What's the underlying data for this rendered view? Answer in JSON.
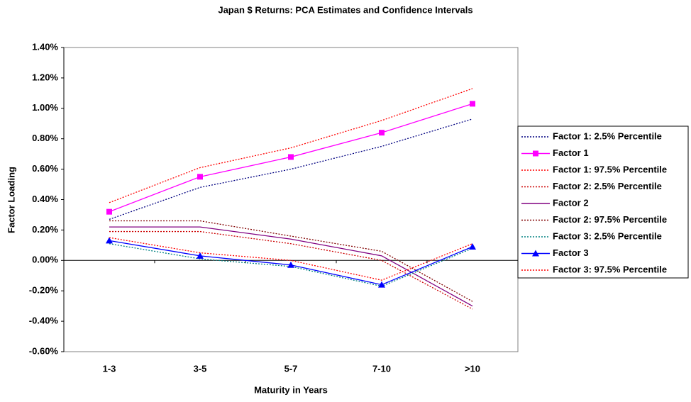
{
  "chart_data": {
    "type": "line",
    "title": "Japan $ Returns: PCA Estimates and Confidence Intervals",
    "x_label": "Maturity in Years",
    "y_label": "Factor Loading",
    "categories": [
      "1-3",
      "3-5",
      "5-7",
      "7-10",
      ">10"
    ],
    "ylim": [
      -0.6,
      1.4
    ],
    "yticks": [
      {
        "value": -0.6,
        "label": "-0.60%"
      },
      {
        "value": -0.4,
        "label": "-0.40%"
      },
      {
        "value": -0.2,
        "label": "-0.20%"
      },
      {
        "value": 0,
        "label": "0.00%"
      },
      {
        "value": 0.2,
        "label": "0.20%"
      },
      {
        "value": 0.4,
        "label": "0.40%"
      },
      {
        "value": 0.6,
        "label": "0.60%"
      },
      {
        "value": 0.8,
        "label": "0.80%"
      },
      {
        "value": 1.0,
        "label": "1.00%"
      },
      {
        "value": 1.2,
        "label": "1.20%"
      },
      {
        "value": 1.4,
        "label": "1.40%"
      }
    ],
    "legend": "right",
    "series": [
      {
        "name": "Factor 1: 2.5% Percentile",
        "color": "#000080",
        "style": "dotted",
        "values": [
          0.27,
          0.48,
          0.6,
          0.75,
          0.93
        ]
      },
      {
        "name": "Factor 1",
        "color": "#ff00ff",
        "style": "solid",
        "marker": "square",
        "values": [
          0.32,
          0.55,
          0.68,
          0.84,
          1.03
        ]
      },
      {
        "name": "Factor 1: 97.5% Percentile",
        "color": "#ff0000",
        "style": "dotted",
        "values": [
          0.38,
          0.61,
          0.74,
          0.92,
          1.13
        ]
      },
      {
        "name": "Factor 2: 2.5% Percentile",
        "color": "#cc0000",
        "style": "dotted",
        "values": [
          0.19,
          0.19,
          0.11,
          0.0,
          -0.32
        ]
      },
      {
        "name": "Factor 2",
        "color": "#800080",
        "style": "solid",
        "values": [
          0.22,
          0.22,
          0.14,
          0.03,
          -0.3
        ]
      },
      {
        "name": "Factor 2: 97.5% Percentile",
        "color": "#800000",
        "style": "dotted",
        "values": [
          0.26,
          0.26,
          0.16,
          0.06,
          -0.27
        ]
      },
      {
        "name": "Factor 3: 2.5% Percentile",
        "color": "#008080",
        "style": "dotted",
        "values": [
          0.11,
          0.01,
          -0.04,
          -0.17,
          0.08
        ]
      },
      {
        "name": "Factor 3",
        "color": "#0000ff",
        "style": "solid",
        "marker": "triangle",
        "values": [
          0.13,
          0.03,
          -0.03,
          -0.16,
          0.09
        ]
      },
      {
        "name": "Factor 3: 97.5% Percentile",
        "color": "#ff0000",
        "style": "dotted",
        "values": [
          0.15,
          0.05,
          0.0,
          -0.13,
          0.11
        ]
      }
    ]
  }
}
